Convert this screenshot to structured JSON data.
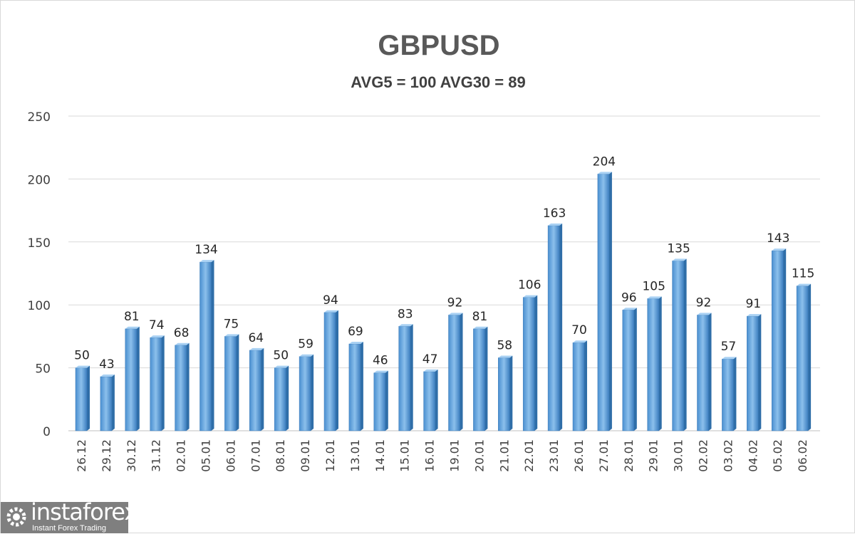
{
  "chart_data": {
    "type": "bar",
    "title": "GBPUSD",
    "subtitle": "AVG5 = 100 AVG30 = 89",
    "categories": [
      "26.12",
      "29.12",
      "30.12",
      "31.12",
      "02.01",
      "05.01",
      "06.01",
      "07.01",
      "08.01",
      "09.01",
      "12.01",
      "13.01",
      "14.01",
      "15.01",
      "16.01",
      "19.01",
      "20.01",
      "21.01",
      "22.01",
      "23.01",
      "26.01",
      "27.01",
      "28.01",
      "29.01",
      "30.01",
      "02.02",
      "03.02",
      "04.02",
      "05.02",
      "06.02"
    ],
    "values": [
      50,
      43,
      81,
      74,
      68,
      134,
      75,
      64,
      50,
      59,
      94,
      69,
      46,
      83,
      47,
      92,
      81,
      58,
      106,
      163,
      70,
      204,
      96,
      105,
      135,
      92,
      57,
      91,
      143,
      115
    ],
    "ylim": [
      0,
      250
    ],
    "yticks": [
      0,
      50,
      100,
      150,
      200,
      250
    ],
    "grid": true,
    "bar_color": "#5b9bd5",
    "data_labels": true
  },
  "logo": {
    "name": "instaforex",
    "tagline": "Instant Forex Trading"
  }
}
